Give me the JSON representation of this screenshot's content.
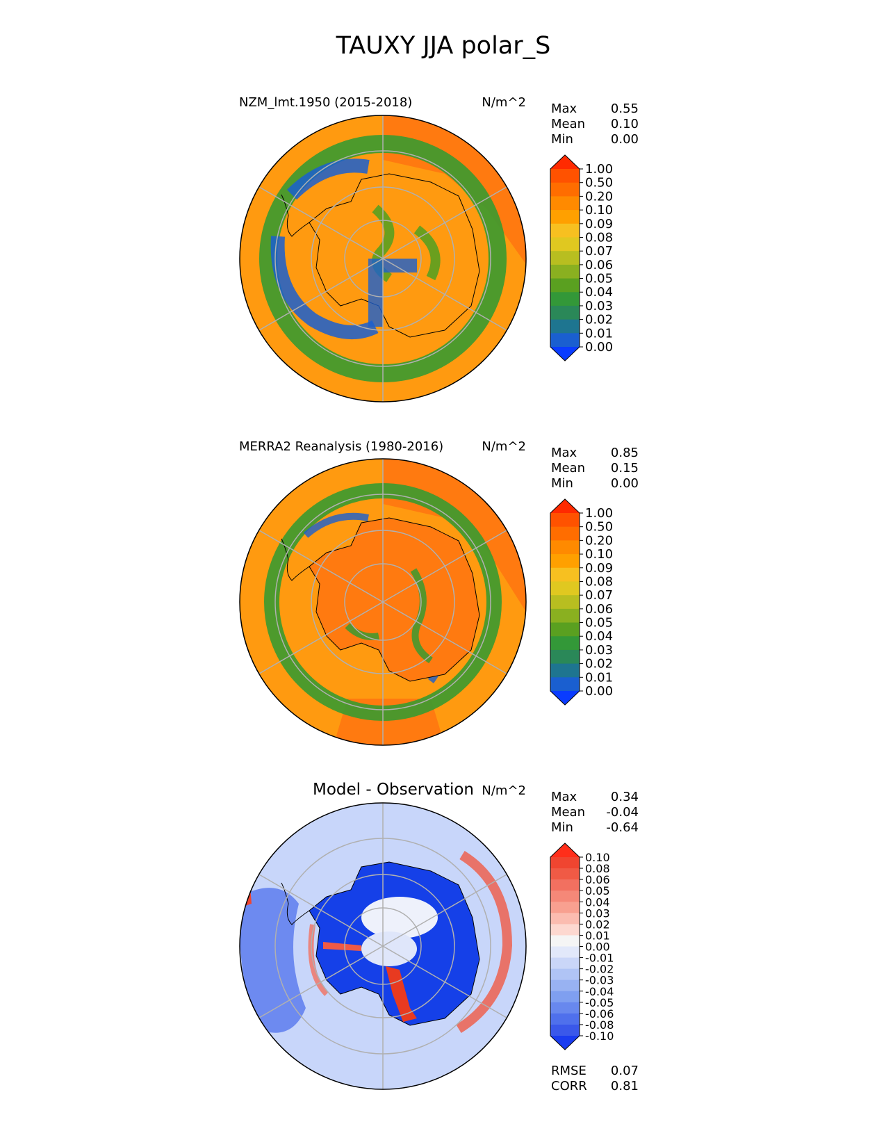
{
  "figure_title": "TAUXY JJA polar_S",
  "colors": {
    "ocean_orange": "#ff9a10",
    "land_orange": "#ff7a10",
    "green": "#3a9a30",
    "blue": "#1a5fd0",
    "diff_blue": "#1540e8",
    "diff_light": "#c8d6fa",
    "diff_red": "#e83a20",
    "grid": "#b0b0b0"
  },
  "chart_data": [
    {
      "type": "heatmap",
      "projection": "south-polar-stereographic",
      "title": "NZM_lmt.1950 (2015-2018)",
      "units": "N/m^2",
      "stats": {
        "labels": [
          "Max",
          "Mean",
          "Min"
        ],
        "values": [
          "0.55",
          "0.10",
          "0.00"
        ]
      },
      "colorbar": {
        "ticks": [
          "1.00",
          "0.50",
          "0.20",
          "0.10",
          "0.09",
          "0.08",
          "0.07",
          "0.06",
          "0.05",
          "0.04",
          "0.03",
          "0.02",
          "0.01",
          "0.00"
        ],
        "colors": [
          "#ff2a00",
          "#ff5200",
          "#ff6d00",
          "#ff8a00",
          "#ffa000",
          "#f7c020",
          "#e0c820",
          "#b8be20",
          "#8ab020",
          "#5aa020",
          "#339838",
          "#2a8858",
          "#1e7590",
          "#1a5fd0",
          "#0a3cff"
        ],
        "extend": "both"
      }
    },
    {
      "type": "heatmap",
      "projection": "south-polar-stereographic",
      "title": "MERRA2 Reanalysis (1980-2016)",
      "units": "N/m^2",
      "stats": {
        "labels": [
          "Max",
          "Mean",
          "Min"
        ],
        "values": [
          "0.85",
          "0.15",
          "0.00"
        ]
      },
      "colorbar": {
        "ticks": [
          "1.00",
          "0.50",
          "0.20",
          "0.10",
          "0.09",
          "0.08",
          "0.07",
          "0.06",
          "0.05",
          "0.04",
          "0.03",
          "0.02",
          "0.01",
          "0.00"
        ],
        "colors": [
          "#ff2a00",
          "#ff5200",
          "#ff6d00",
          "#ff8a00",
          "#ffa000",
          "#f7c020",
          "#e0c820",
          "#b8be20",
          "#8ab020",
          "#5aa020",
          "#339838",
          "#2a8858",
          "#1e7590",
          "#1a5fd0",
          "#0a3cff"
        ],
        "extend": "both"
      }
    },
    {
      "type": "heatmap",
      "projection": "south-polar-stereographic",
      "title": "Model - Observation",
      "units": "N/m^2",
      "stats": {
        "labels": [
          "Max",
          "Mean",
          "Min"
        ],
        "values": [
          "0.34",
          "-0.04",
          "-0.64"
        ]
      },
      "metrics": {
        "labels": [
          "RMSE",
          "CORR"
        ],
        "values": [
          "0.07",
          "0.81"
        ]
      },
      "colorbar": {
        "ticks": [
          "0.10",
          "0.08",
          "0.06",
          "0.05",
          "0.04",
          "0.03",
          "0.02",
          "0.01",
          "0.00",
          "-0.01",
          "-0.02",
          "-0.03",
          "-0.04",
          "-0.05",
          "-0.06",
          "-0.08",
          "-0.10"
        ],
        "colors": [
          "#ff2e1a",
          "#f04530",
          "#f05a45",
          "#f27060",
          "#f58878",
          "#f8a090",
          "#fbbcb0",
          "#fdd8d0",
          "#f5f5f5",
          "#e2e8fa",
          "#cad6f8",
          "#b0c4f5",
          "#98b2f2",
          "#7f9ff0",
          "#6888ee",
          "#4f70ec",
          "#3a58ea",
          "#1a3cf0"
        ],
        "extend": "both"
      }
    }
  ]
}
